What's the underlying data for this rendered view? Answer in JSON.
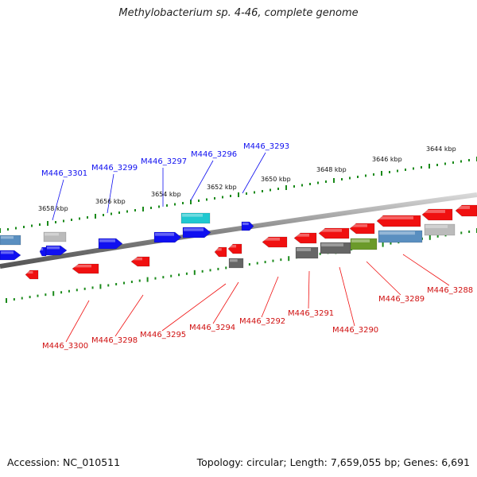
{
  "title": "Methylobacterium sp. 4-46, complete genome",
  "footer": {
    "accession": "Accession: NC_010511",
    "topology": "Topology: circular; Length: 7,659,055 bp; Genes: 6,691"
  },
  "colors": {
    "forward_strand": "#1010f0",
    "reverse_strand": "#f01010",
    "backbone": "#888888",
    "tick": "#1a8a1a"
  },
  "scale_labels": [
    "3658 kbp",
    "3656 kbp",
    "3654 kbp",
    "3652 kbp",
    "3650 kbp",
    "3648 kbp",
    "3646 kbp",
    "3644 kbp"
  ],
  "top_genes": [
    "M446_3301",
    "M446_3299",
    "M446_3297",
    "M446_3296",
    "M446_3293"
  ],
  "bottom_genes": [
    "M446_3300",
    "M446_3298",
    "M446_3295",
    "M446_3294",
    "M446_3292",
    "M446_3291",
    "M446_3290",
    "M446_3289",
    "M446_3288"
  ]
}
